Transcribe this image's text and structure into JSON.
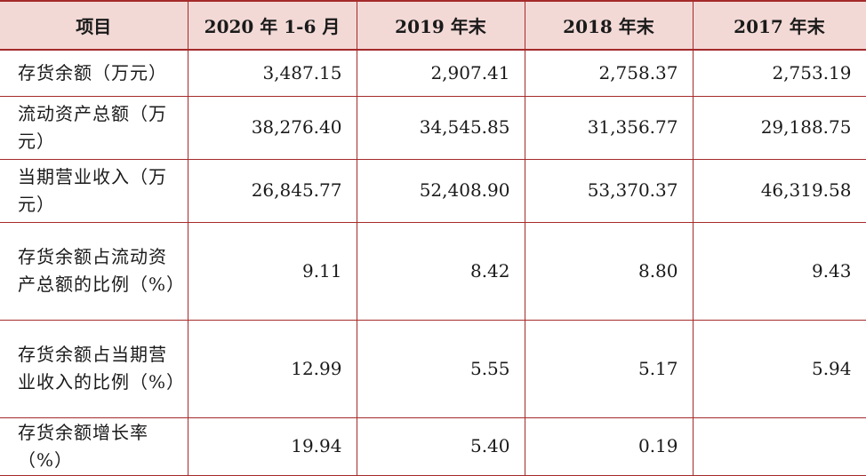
{
  "table": {
    "headers": [
      "项目",
      "2020 年 1-6 月",
      "2019 年末",
      "2018 年末",
      "2017 年末"
    ],
    "rows": [
      {
        "label": "存货余额（万元）",
        "values": [
          "3,487.15",
          "2,907.41",
          "2,758.37",
          "2,753.19"
        ]
      },
      {
        "label": "流动资产总额（万元）",
        "values": [
          "38,276.40",
          "34,545.85",
          "31,356.77",
          "29,188.75"
        ]
      },
      {
        "label": "当期营业收入（万元）",
        "values": [
          "26,845.77",
          "52,408.90",
          "53,370.37",
          "46,319.58"
        ]
      },
      {
        "label": "存货余额占流动资产总额的比例（%）",
        "values": [
          "9.11",
          "8.42",
          "8.80",
          "9.43"
        ]
      },
      {
        "label": "存货余额占当期营业收入的比例（%）",
        "values": [
          "12.99",
          "5.55",
          "5.17",
          "5.94"
        ]
      },
      {
        "label": "存货余额增长率（%）",
        "values": [
          "19.94",
          "5.40",
          "0.19",
          ""
        ]
      }
    ]
  }
}
